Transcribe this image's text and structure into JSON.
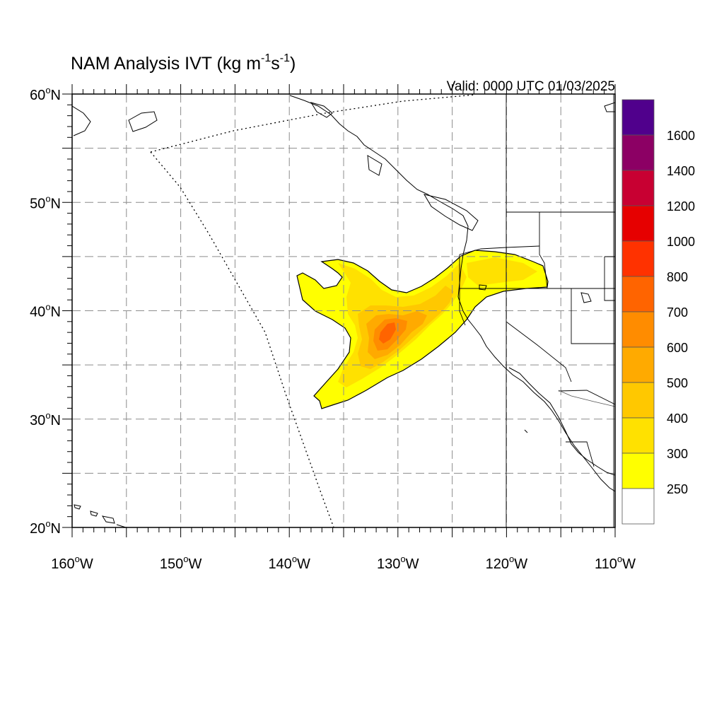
{
  "title": {
    "main": "NAM Analysis IVT (kg m",
    "sup1": "-1",
    "mid": "s",
    "sup2": "-1",
    "close": ")"
  },
  "valid": "Valid: 0000 UTC 01/03/2025",
  "map": {
    "projection": "cylindrical equidistant",
    "lon_range": [
      -160,
      -110
    ],
    "lat_range": [
      20,
      60
    ],
    "grid": true,
    "grid_lon_step": 5,
    "grid_lat_step": 5
  },
  "axes": {
    "x_ticks": [
      {
        "lon": -160,
        "num": "160",
        "deg": "o",
        "hem": "W"
      },
      {
        "lon": -150,
        "num": "150",
        "deg": "o",
        "hem": "W"
      },
      {
        "lon": -140,
        "num": "140",
        "deg": "o",
        "hem": "W"
      },
      {
        "lon": -130,
        "num": "130",
        "deg": "o",
        "hem": "W"
      },
      {
        "lon": -120,
        "num": "120",
        "deg": "o",
        "hem": "W"
      },
      {
        "lon": -110,
        "num": "110",
        "deg": "o",
        "hem": "W"
      }
    ],
    "y_ticks": [
      {
        "lat": 60,
        "num": "60",
        "deg": "o",
        "hem": "N"
      },
      {
        "lat": 50,
        "num": "50",
        "deg": "o",
        "hem": "N"
      },
      {
        "lat": 40,
        "num": "40",
        "deg": "o",
        "hem": "N"
      },
      {
        "lat": 30,
        "num": "30",
        "deg": "o",
        "hem": "N"
      },
      {
        "lat": 20,
        "num": "20",
        "deg": "o",
        "hem": "N"
      }
    ]
  },
  "colorbar": {
    "levels": [
      "250",
      "300",
      "400",
      "500",
      "600",
      "700",
      "800",
      "1000",
      "1200",
      "1400",
      "1600"
    ],
    "colors": [
      "#ffffff",
      "#ffff00",
      "#ffe100",
      "#ffc800",
      "#ffaa00",
      "#ff8c00",
      "#ff6400",
      "#ff3200",
      "#e60000",
      "#c80032",
      "#8c0064",
      "#50008c"
    ]
  },
  "ivt_field": {
    "units": "kg m-1 s-1",
    "shading": [
      {
        "level": "250-300",
        "color": "#ffff00"
      },
      {
        "level": "300-400",
        "color": "#ffe100"
      },
      {
        "level": "400-500",
        "color": "#ffc800"
      },
      {
        "level": "500-600",
        "color": "#ffaa00"
      },
      {
        "level": "600-700",
        "color": "#ff8c00"
      },
      {
        "level": "700-800",
        "color": "#ff6400"
      }
    ],
    "max_center_lonlat": [
      -130.5,
      38.3
    ]
  }
}
